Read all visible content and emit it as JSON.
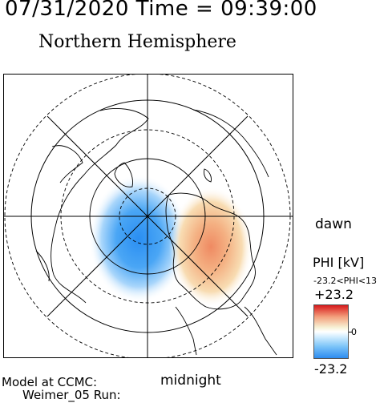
{
  "header": {
    "datetime": "07/31/2020 Time = 09:39:00",
    "hemisphere": "Northern Hemisphere"
  },
  "map": {
    "dawn_label": "dawn",
    "midnight_label": "midnight"
  },
  "colorbar": {
    "title": "PHI [kV]",
    "range_text": "-23.2<PHI<13",
    "max_label": "+23.2",
    "zero_label": "0",
    "min_label": "-23.2",
    "colors": {
      "positive": "#d7191c",
      "negative": "#2d8cf0",
      "neutral": "#ffffff"
    }
  },
  "footer": {
    "line1": "Model at CCMC:",
    "line2": "Weimer_05 Run:"
  }
}
